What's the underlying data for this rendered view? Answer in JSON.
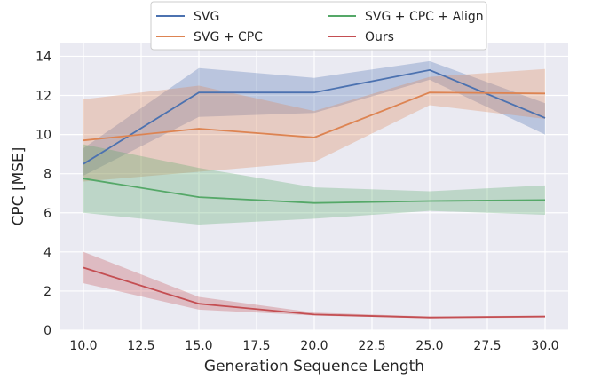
{
  "chart_data": {
    "type": "line",
    "xlabel": "Generation Sequence Length",
    "ylabel": "CPC [MSE]",
    "xlim": [
      9.0,
      31.0
    ],
    "ylim": [
      0,
      14.7
    ],
    "xticks": [
      "10.0",
      "12.5",
      "15.0",
      "17.5",
      "20.0",
      "22.5",
      "25.0",
      "27.5",
      "30.0"
    ],
    "yticks": [
      "0",
      "2",
      "4",
      "6",
      "8",
      "10",
      "12",
      "14"
    ],
    "grid": true,
    "legend_position": "top-center",
    "x": [
      10,
      15,
      20,
      25,
      30
    ],
    "series": [
      {
        "name": "SVG",
        "color": "#4c72b0",
        "values": [
          8.5,
          12.15,
          12.15,
          13.3,
          10.85
        ],
        "lower": [
          7.9,
          10.9,
          11.1,
          12.8,
          10.0
        ],
        "upper": [
          9.3,
          13.4,
          12.9,
          13.75,
          11.6
        ]
      },
      {
        "name": "SVG + CPC",
        "color": "#dd8452",
        "values": [
          9.7,
          10.3,
          9.85,
          12.15,
          12.1
        ],
        "lower": [
          7.6,
          8.1,
          8.6,
          11.5,
          10.8
        ],
        "upper": [
          11.8,
          12.5,
          11.2,
          12.95,
          13.35
        ]
      },
      {
        "name": "SVG + CPC + Align",
        "color": "#55a868",
        "values": [
          7.75,
          6.8,
          6.5,
          6.6,
          6.65
        ],
        "lower": [
          6.0,
          5.4,
          5.7,
          6.1,
          5.9
        ],
        "upper": [
          9.5,
          8.3,
          7.3,
          7.1,
          7.4
        ]
      },
      {
        "name": "Ours",
        "color": "#c44e52",
        "values": [
          3.2,
          1.35,
          0.8,
          0.65,
          0.7
        ],
        "lower": [
          2.4,
          1.05,
          0.75,
          0.6,
          0.65
        ],
        "upper": [
          4.0,
          1.7,
          0.9,
          0.7,
          0.75
        ]
      }
    ]
  }
}
